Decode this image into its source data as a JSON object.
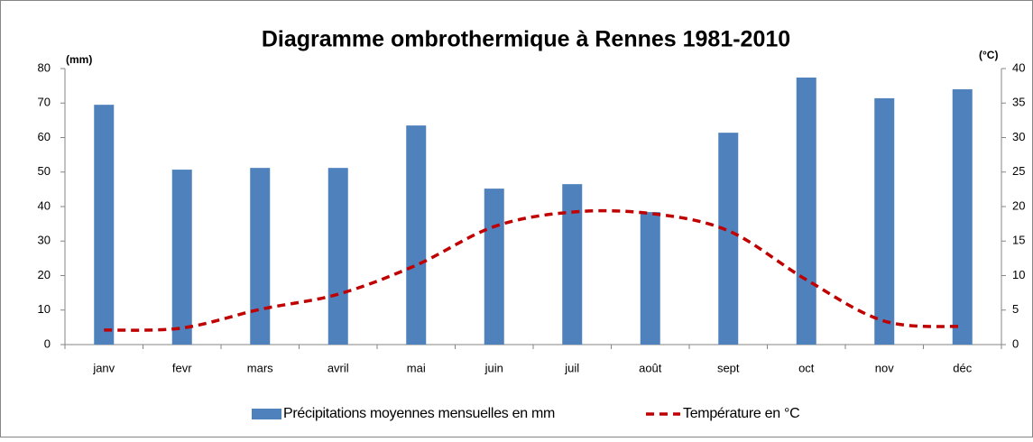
{
  "chart_data": {
    "type": "bar_line",
    "title": "Diagramme ombrothermique à Rennes  1981-2010",
    "y_label": "(mm)",
    "y2_label": "(°C)",
    "categories": [
      "janv",
      "fevr",
      "mars",
      "avril",
      "mai",
      "juin",
      "juil",
      "août",
      "sept",
      "oct",
      "nov",
      "déc"
    ],
    "series": [
      {
        "name": "Précipitations moyennes mensuelles en mm",
        "type": "bar",
        "color": "#4f81bd",
        "values": [
          69.5,
          50.7,
          51.2,
          51.2,
          63.5,
          45.2,
          46.5,
          38.4,
          61.4,
          77.4,
          71.4,
          74.0
        ]
      },
      {
        "name": "Température en °C",
        "type": "line",
        "axis": "y2",
        "color": "#c00000",
        "dashed": true,
        "values": [
          2.1,
          2.4,
          5.1,
          7.3,
          11.5,
          17.1,
          19.2,
          19.0,
          16.5,
          9.4,
          3.4,
          2.6
        ]
      }
    ],
    "ylim": [
      0,
      80
    ],
    "yticks": [
      0,
      10,
      20,
      30,
      40,
      50,
      60,
      70,
      80
    ],
    "y2lim": [
      0,
      40
    ],
    "y2ticks": [
      0,
      5,
      10,
      15,
      20,
      25,
      30,
      35,
      40
    ],
    "grid": false,
    "legend": "bottom"
  }
}
